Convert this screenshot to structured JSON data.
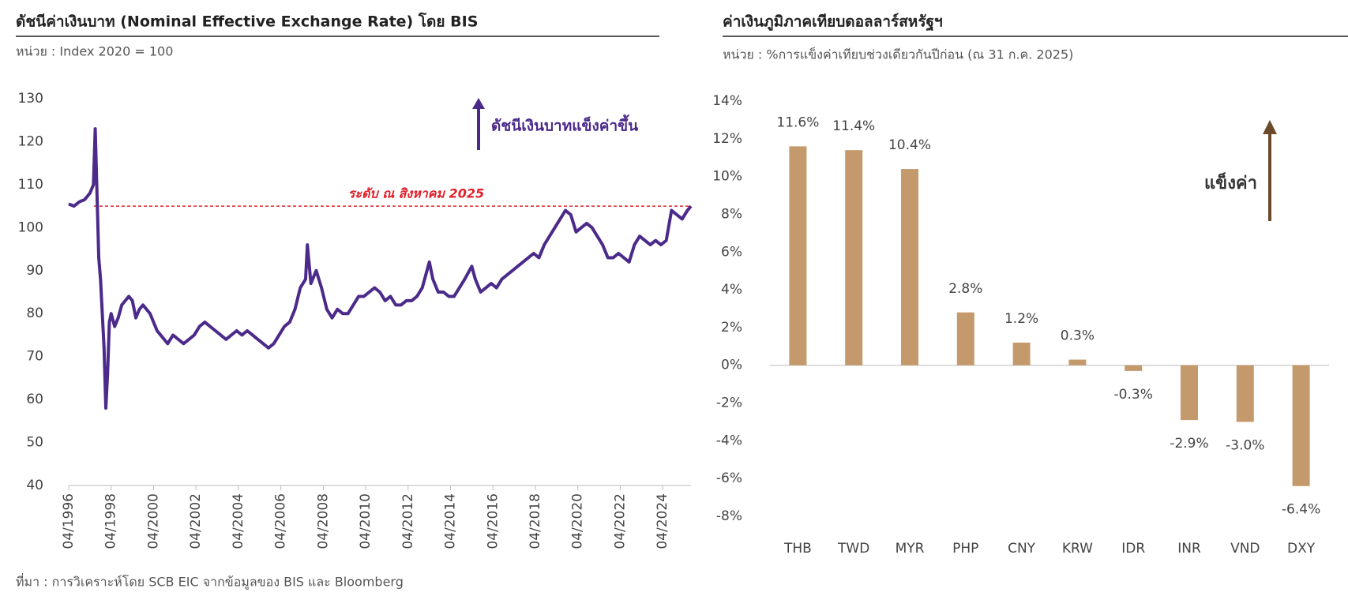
{
  "chart_data": [
    {
      "type": "line",
      "title": "ดัชนีค่าเงินบาท (Nominal Effective Exchange Rate) โดย BIS",
      "subtitle": "หน่วย : Index 2020 = 100",
      "annotation": "ดัชนีเงินบาทแข็งค่าขึ้น",
      "reference_label": "ระดับ ณ สิงหาคม 2025",
      "reference_value": 105,
      "xlim": [
        "04/1996",
        "08/2025"
      ],
      "xticks": [
        "04/1996",
        "04/1998",
        "04/2000",
        "04/2002",
        "04/2004",
        "04/2006",
        "04/2008",
        "04/2010",
        "04/2012",
        "04/2014",
        "04/2016",
        "04/2018",
        "04/2020",
        "04/2022",
        "04/2024"
      ],
      "ylim": [
        40,
        130
      ],
      "yticks": [
        40,
        50,
        60,
        70,
        80,
        90,
        100,
        110,
        120,
        130
      ],
      "x": [
        "04/1996",
        "07/1996",
        "10/1996",
        "01/1997",
        "04/1997",
        "06/1997",
        "07/1997",
        "08/1997",
        "09/1997",
        "10/1997",
        "11/1997",
        "12/1997",
        "01/1998",
        "02/1998",
        "03/1998",
        "04/1998",
        "06/1998",
        "08/1998",
        "10/1998",
        "12/1998",
        "02/1999",
        "04/1999",
        "06/1999",
        "08/1999",
        "10/1999",
        "12/1999",
        "02/2000",
        "04/2000",
        "06/2000",
        "08/2000",
        "10/2000",
        "12/2000",
        "03/2001",
        "06/2001",
        "09/2001",
        "12/2001",
        "03/2002",
        "06/2002",
        "09/2002",
        "12/2002",
        "03/2003",
        "06/2003",
        "09/2003",
        "12/2003",
        "03/2004",
        "06/2004",
        "09/2004",
        "12/2004",
        "03/2005",
        "06/2005",
        "09/2005",
        "12/2005",
        "03/2006",
        "06/2006",
        "09/2006",
        "12/2006",
        "03/2007",
        "06/2007",
        "07/2007",
        "09/2007",
        "12/2007",
        "03/2008",
        "06/2008",
        "09/2008",
        "12/2008",
        "03/2009",
        "06/2009",
        "09/2009",
        "12/2009",
        "03/2010",
        "06/2010",
        "09/2010",
        "12/2010",
        "03/2011",
        "06/2011",
        "09/2011",
        "12/2011",
        "03/2012",
        "06/2012",
        "09/2012",
        "12/2012",
        "04/2013",
        "06/2013",
        "09/2013",
        "12/2013",
        "03/2014",
        "06/2014",
        "09/2014",
        "12/2014",
        "04/2015",
        "06/2015",
        "09/2015",
        "12/2015",
        "03/2016",
        "06/2016",
        "09/2016",
        "12/2016",
        "03/2017",
        "06/2017",
        "09/2017",
        "12/2017",
        "03/2018",
        "06/2018",
        "09/2018",
        "12/2018",
        "03/2019",
        "06/2019",
        "09/2019",
        "12/2019",
        "03/2020",
        "06/2020",
        "09/2020",
        "12/2020",
        "03/2021",
        "06/2021",
        "09/2021",
        "12/2021",
        "03/2022",
        "06/2022",
        "09/2022",
        "12/2022",
        "03/2023",
        "06/2023",
        "09/2023",
        "12/2023",
        "03/2024",
        "06/2024",
        "09/2024",
        "12/2024",
        "03/2025",
        "06/2025",
        "08/2025"
      ],
      "series": [
        {
          "name": "NEER",
          "color": "#4b2a8a",
          "values": [
            105.5,
            105,
            106,
            106.5,
            108,
            110,
            123,
            108,
            93,
            88,
            80,
            72,
            58,
            66,
            78,
            80,
            77,
            79,
            82,
            83,
            84,
            83,
            79,
            81,
            82,
            81,
            80,
            78,
            76,
            75,
            74,
            73,
            75,
            74,
            73,
            74,
            75,
            77,
            78,
            77,
            76,
            75,
            74,
            75,
            76,
            75,
            76,
            75,
            74,
            73,
            72,
            73,
            75,
            77,
            78,
            81,
            86,
            88,
            96,
            87,
            90,
            86,
            81,
            79,
            81,
            80,
            80,
            82,
            84,
            84,
            85,
            86,
            85,
            83,
            84,
            82,
            82,
            83,
            83,
            84,
            86,
            92,
            88,
            85,
            85,
            84,
            84,
            86,
            88,
            91,
            88,
            85,
            86,
            87,
            86,
            88,
            89,
            90,
            91,
            92,
            93,
            94,
            93,
            96,
            98,
            100,
            102,
            104,
            103,
            99,
            100,
            101,
            100,
            98,
            96,
            93,
            93,
            94,
            93,
            92,
            96,
            98,
            97,
            96,
            97,
            96,
            97,
            104,
            103,
            102,
            104,
            105
          ]
        }
      ]
    },
    {
      "type": "bar",
      "title": "ค่าเงินภูมิภาคเทียบดอลลาร์สหรัฐฯ",
      "subtitle": "หน่วย : %การแข็งค่าเทียบช่วงเดียวกันปีก่อน (ณ 31 ก.ค. 2025)",
      "annotation": "แข็งค่า",
      "categories": [
        "THB",
        "TWD",
        "MYR",
        "PHP",
        "CNY",
        "KRW",
        "IDR",
        "INR",
        "VND",
        "DXY"
      ],
      "values": [
        11.6,
        11.4,
        10.4,
        2.8,
        1.2,
        0.3,
        -0.3,
        -2.9,
        -3.0,
        -6.4
      ],
      "value_labels": [
        "11.6%",
        "11.4%",
        "10.4%",
        "2.8%",
        "1.2%",
        "0.3%",
        "-0.3%",
        "-2.9%",
        "-3.0%",
        "-6.4%"
      ],
      "color": "#c49a6c",
      "ylim": [
        -8,
        14
      ],
      "yticks": [
        {
          "value": -8,
          "label": "-8%"
        },
        {
          "value": -6,
          "label": "-6%"
        },
        {
          "value": -4,
          "label": "-4%"
        },
        {
          "value": -2,
          "label": "-2%"
        },
        {
          "value": 0,
          "label": "0%"
        },
        {
          "value": 2,
          "label": "2%"
        },
        {
          "value": 4,
          "label": "4%"
        },
        {
          "value": 6,
          "label": "6%"
        },
        {
          "value": 8,
          "label": "8%"
        },
        {
          "value": 10,
          "label": "10%"
        },
        {
          "value": 12,
          "label": "12%"
        },
        {
          "value": 14,
          "label": "14%"
        }
      ]
    }
  ],
  "source": "ที่มา : การวิเคราะห์โดย SCB EIC จากข้อมูลของ BIS และ Bloomberg"
}
